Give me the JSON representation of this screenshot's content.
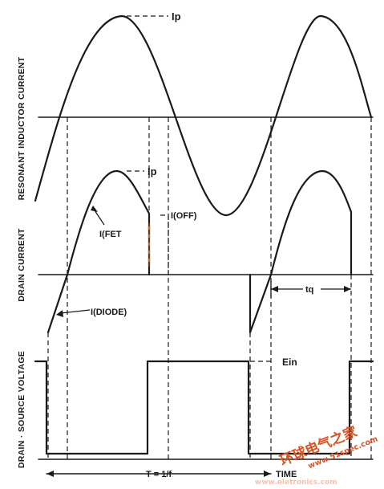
{
  "axis_labels": {
    "resonant_current": "RESONANT INDUCTOR CURRENT",
    "drain_current": "DRAIN CURRENT",
    "drain_source_voltage": "DRAIN · SOURCE VOLTAGE"
  },
  "annotations": {
    "ip_top": "Ip",
    "ip_drain": "Ip",
    "i_fet": "I(FET",
    "i_off": "I(OFF)",
    "i_diode": "I(DIODE)",
    "tq": "tq",
    "ein": "Ein",
    "period": "T = 1/f",
    "time": "TIME"
  },
  "watermark": {
    "cn": "环球电气之家",
    "url": "www.51spec.com",
    "faded": "www.eletronics.com"
  },
  "colors": {
    "ink": "#1a1a1a",
    "highlight": "#e8893a",
    "watermark": "#d9531e"
  }
}
